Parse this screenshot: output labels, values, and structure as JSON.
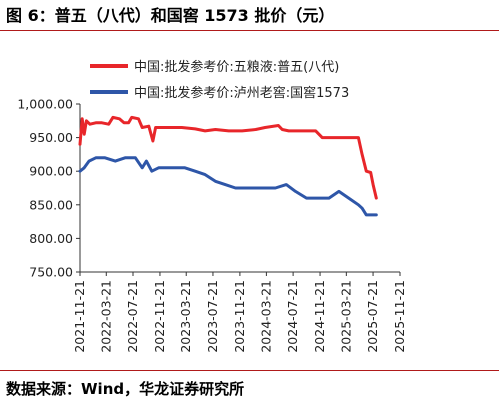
{
  "header": {
    "title": "图 6：普五（八代）和国窖 1573 批价（元）"
  },
  "footer": {
    "source": "数据来源：Wind，华龙证券研究所"
  },
  "chart_data": {
    "type": "line",
    "title": "",
    "xlabel": "",
    "ylabel": "",
    "ylim": [
      750,
      1000
    ],
    "yticks": [
      "750.00",
      "800.00",
      "850.00",
      "900.00",
      "950.00",
      "1,000.00"
    ],
    "ytick_values": [
      750,
      800,
      850,
      900,
      950,
      1000
    ],
    "xlim": [
      "2021-11-21",
      "2025-11-21"
    ],
    "xticks": [
      "2021-11-21",
      "2022-03-21",
      "2022-07-21",
      "2022-11-21",
      "2023-03-21",
      "2023-07-21",
      "2023-11-21",
      "2024-03-21",
      "2024-07-21",
      "2024-11-21",
      "2025-03-21",
      "2025-07-21",
      "2025-11-21"
    ],
    "grid": false,
    "legend_position": "top",
    "series": [
      {
        "name": "中国:批发参考价:五粮液:普五(八代)",
        "color": "#e8262a",
        "points": [
          [
            "2021-11-21",
            940
          ],
          [
            "2021-12-01",
            978
          ],
          [
            "2021-12-10",
            955
          ],
          [
            "2021-12-20",
            975
          ],
          [
            "2022-01-05",
            970
          ],
          [
            "2022-02-01",
            972
          ],
          [
            "2022-03-01",
            972
          ],
          [
            "2022-04-01",
            970
          ],
          [
            "2022-04-20",
            980
          ],
          [
            "2022-05-20",
            978
          ],
          [
            "2022-06-10",
            972
          ],
          [
            "2022-07-01",
            972
          ],
          [
            "2022-07-15",
            980
          ],
          [
            "2022-08-15",
            978
          ],
          [
            "2022-09-01",
            965
          ],
          [
            "2022-10-01",
            967
          ],
          [
            "2022-10-20",
            945
          ],
          [
            "2022-11-01",
            965
          ],
          [
            "2023-01-01",
            965
          ],
          [
            "2023-03-01",
            965
          ],
          [
            "2023-05-01",
            963
          ],
          [
            "2023-06-15",
            960
          ],
          [
            "2023-08-01",
            962
          ],
          [
            "2023-10-01",
            960
          ],
          [
            "2023-12-01",
            960
          ],
          [
            "2024-02-01",
            962
          ],
          [
            "2024-03-15",
            965
          ],
          [
            "2024-05-15",
            968
          ],
          [
            "2024-06-01",
            962
          ],
          [
            "2024-07-01",
            960
          ],
          [
            "2024-09-01",
            960
          ],
          [
            "2024-11-01",
            960
          ],
          [
            "2024-12-01",
            950
          ],
          [
            "2025-02-01",
            950
          ],
          [
            "2025-04-01",
            950
          ],
          [
            "2025-05-15",
            950
          ],
          [
            "2025-06-01",
            925
          ],
          [
            "2025-06-20",
            900
          ],
          [
            "2025-07-10",
            898
          ],
          [
            "2025-07-21",
            880
          ],
          [
            "2025-08-05",
            860
          ]
        ]
      },
      {
        "name": "中国:批发参考价:泸州老窖:国窖1573",
        "color": "#2e56a8",
        "points": [
          [
            "2021-11-21",
            900
          ],
          [
            "2021-12-10",
            905
          ],
          [
            "2022-01-01",
            915
          ],
          [
            "2022-02-01",
            920
          ],
          [
            "2022-03-15",
            920
          ],
          [
            "2022-05-01",
            915
          ],
          [
            "2022-06-15",
            920
          ],
          [
            "2022-08-01",
            920
          ],
          [
            "2022-09-01",
            905
          ],
          [
            "2022-09-20",
            915
          ],
          [
            "2022-10-15",
            900
          ],
          [
            "2022-11-15",
            905
          ],
          [
            "2023-01-15",
            905
          ],
          [
            "2023-03-15",
            905
          ],
          [
            "2023-05-01",
            900
          ],
          [
            "2023-06-15",
            895
          ],
          [
            "2023-08-01",
            885
          ],
          [
            "2023-09-15",
            880
          ],
          [
            "2023-11-01",
            875
          ],
          [
            "2024-01-01",
            875
          ],
          [
            "2024-03-01",
            875
          ],
          [
            "2024-05-01",
            875
          ],
          [
            "2024-06-20",
            880
          ],
          [
            "2024-08-01",
            870
          ],
          [
            "2024-09-20",
            860
          ],
          [
            "2024-11-01",
            860
          ],
          [
            "2025-01-01",
            860
          ],
          [
            "2025-02-15",
            870
          ],
          [
            "2025-04-01",
            860
          ],
          [
            "2025-05-15",
            850
          ],
          [
            "2025-06-01",
            845
          ],
          [
            "2025-06-20",
            835
          ],
          [
            "2025-07-21",
            835
          ],
          [
            "2025-08-05",
            835
          ]
        ]
      }
    ]
  }
}
